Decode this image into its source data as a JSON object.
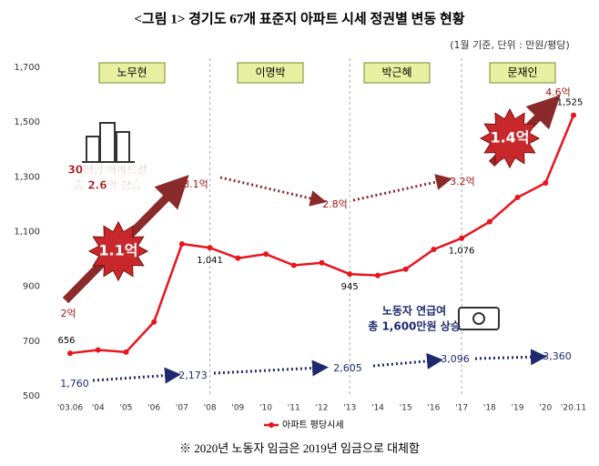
{
  "chart_data": {
    "type": "line",
    "title": "<그림 1> 경기도 67개 표준지 아파트 시세 정권별 변동 현황",
    "subtitle": "(1월 기준, 단위 : 만원/평당)",
    "categories": [
      "'03.06",
      "'04",
      "'05",
      "'06",
      "'07",
      "'08",
      "'09",
      "'10",
      "'11",
      "'12",
      "'13",
      "'14",
      "'15",
      "'16",
      "'17",
      "'18",
      "'19",
      "'20",
      "'20.11"
    ],
    "series": [
      {
        "name": "아파트 평당시세",
        "color": "#e8141e",
        "values": [
          656,
          668,
          660,
          770,
          1055,
          1041,
          1003,
          1018,
          977,
          986,
          945,
          940,
          963,
          1035,
          1076,
          1136,
          1225,
          1278,
          1525
        ],
        "value_labels": [
          "656",
          null,
          null,
          null,
          null,
          "1,041",
          null,
          null,
          null,
          null,
          "945",
          null,
          null,
          null,
          "1,076",
          null,
          null,
          null,
          "1,525"
        ]
      }
    ],
    "ylim": [
      500,
      1700
    ],
    "yticks": [
      500,
      700,
      900,
      {
        "value": 1100,
        "label": "1,100"
      },
      {
        "value": 1300,
        "label": "1,300"
      },
      {
        "value": 1500,
        "label": "1,500"
      },
      {
        "value": 1700,
        "label": "1,700"
      }
    ],
    "eras": [
      "노무현",
      "이명박",
      "박근혜",
      "문재인"
    ],
    "price_labels": [
      "2억",
      "3.1억",
      "2.8억",
      "3.2억",
      "4.6억"
    ],
    "badges": [
      "1.1억",
      "1.4억"
    ],
    "apartment_note": [
      "30평형 아파트값",
      "총 2.6억 상승"
    ],
    "wage_note": [
      "노동자 연급여",
      "총 1,600만원 상승"
    ],
    "wage_labels": [
      "1,760",
      "2,173",
      "2,605",
      "3,096",
      "3,360"
    ],
    "footnote": "※ 2020년 노동자 임금은 2019년 임금으로 대체함"
  }
}
